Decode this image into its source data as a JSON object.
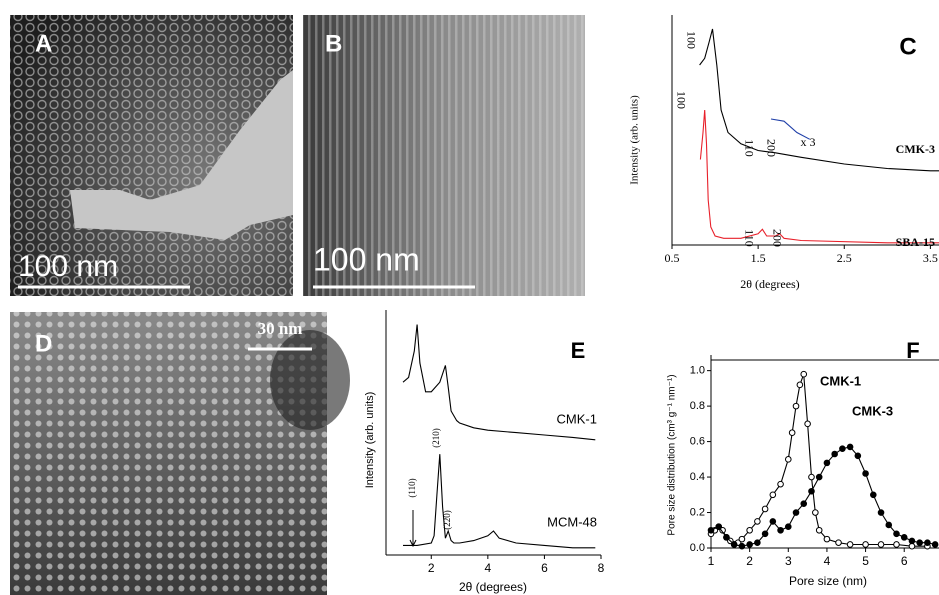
{
  "images": [
    {
      "panel": "A",
      "scale_bar": "100 nm"
    },
    {
      "panel": "B",
      "scale_bar": "100 nm"
    },
    {
      "panel": "D",
      "scale_bar": "30 nm"
    }
  ],
  "chart_data": [
    {
      "type": "line",
      "panel": "C",
      "xlabel": "2θ (degrees)",
      "ylabel": "Intensity (arb. units)",
      "xlim": [
        0.5,
        3.6
      ],
      "xticks": [
        0.5,
        1.5,
        2.5,
        3.5
      ],
      "ylim": [
        0,
        1
      ],
      "annotations": [
        "100",
        "110",
        "200",
        "x 3",
        "100",
        "110",
        "200"
      ],
      "series": [
        {
          "name": "CMK-3",
          "color": "#000000",
          "x": [
            0.82,
            0.88,
            0.93,
            0.97,
            1.02,
            1.07,
            1.15,
            1.3,
            1.5,
            1.7,
            2.0,
            2.5,
            3.0,
            3.5,
            3.6
          ],
          "values": [
            0.8,
            0.83,
            0.9,
            0.96,
            0.8,
            0.6,
            0.5,
            0.45,
            0.42,
            0.41,
            0.39,
            0.36,
            0.34,
            0.33,
            0.33
          ]
        },
        {
          "name": null,
          "color": "#1f3fa8",
          "x": [
            1.65,
            1.8,
            1.95,
            2.1
          ],
          "values": [
            0.56,
            0.55,
            0.5,
            0.47
          ]
        },
        {
          "name": "SBA-15",
          "color": "#e8202a",
          "x": [
            0.83,
            0.86,
            0.88,
            0.9,
            0.92,
            0.95,
            1.0,
            1.1,
            1.3,
            1.5,
            1.55,
            1.6,
            1.7,
            1.75,
            1.8,
            2.0,
            3.0,
            3.6
          ],
          "values": [
            0.38,
            0.5,
            0.6,
            0.45,
            0.2,
            0.08,
            0.04,
            0.03,
            0.03,
            0.05,
            0.07,
            0.04,
            0.04,
            0.05,
            0.03,
            0.02,
            0.01,
            0.01
          ]
        }
      ]
    },
    {
      "type": "line",
      "panel": "E",
      "xlabel": "2θ (degrees)",
      "ylabel": "Intensity (arb. units)",
      "xlim": [
        0.4,
        8
      ],
      "xticks": [
        2,
        4,
        6,
        8
      ],
      "ylim": [
        0,
        1
      ],
      "annotations": [
        "(110)",
        "(210)",
        "(220)"
      ],
      "series": [
        {
          "name": "CMK-1",
          "color": "#000000",
          "x": [
            1.0,
            1.2,
            1.4,
            1.5,
            1.6,
            1.8,
            2.0,
            2.3,
            2.5,
            2.6,
            2.7,
            2.9,
            3.0,
            3.5,
            4,
            5,
            6,
            7,
            7.8
          ],
          "values": [
            0.72,
            0.74,
            0.85,
            0.96,
            0.8,
            0.68,
            0.68,
            0.72,
            0.79,
            0.7,
            0.6,
            0.56,
            0.55,
            0.53,
            0.52,
            0.51,
            0.5,
            0.49,
            0.48
          ]
        },
        {
          "name": "MCM-48",
          "color": "#000000",
          "x": [
            1.0,
            1.5,
            2.0,
            2.1,
            2.2,
            2.3,
            2.4,
            2.5,
            2.6,
            2.7,
            2.8,
            3.0,
            3.5,
            4.0,
            4.2,
            4.4,
            5,
            6,
            7,
            7.8
          ],
          "values": [
            0.04,
            0.04,
            0.05,
            0.08,
            0.25,
            0.42,
            0.2,
            0.07,
            0.1,
            0.06,
            0.05,
            0.05,
            0.06,
            0.08,
            0.1,
            0.07,
            0.05,
            0.04,
            0.03,
            0.03
          ]
        }
      ]
    },
    {
      "type": "line",
      "panel": "F",
      "xlabel": "Pore size (nm)",
      "ylabel": "Pore size distribution (cm³ g⁻¹ nm⁻¹)",
      "xlim": [
        1,
        6.9
      ],
      "xticks": [
        1,
        2,
        3,
        4,
        5,
        6
      ],
      "ylim": [
        0,
        1.06
      ],
      "yticks": [
        {
          "value": 0,
          "label": "0.0"
        },
        0.2,
        0.4,
        0.6,
        0.8,
        {
          "value": 1,
          "label": "1.0"
        }
      ],
      "series": [
        {
          "name": "CMK-1",
          "color": "#000000",
          "marker": "open",
          "x": [
            1.0,
            1.1,
            1.2,
            1.3,
            1.4,
            1.5,
            1.6,
            1.7,
            1.8,
            2.0,
            2.2,
            2.4,
            2.6,
            2.8,
            3.0,
            3.1,
            3.2,
            3.3,
            3.4,
            3.5,
            3.6,
            3.7,
            3.8,
            4.0,
            4.3,
            4.6,
            5.0,
            5.4,
            5.8,
            6.2,
            6.6
          ],
          "values": [
            0.08,
            0.1,
            0.12,
            0.1,
            0.06,
            0.04,
            0.02,
            0.03,
            0.05,
            0.1,
            0.15,
            0.22,
            0.3,
            0.36,
            0.5,
            0.65,
            0.8,
            0.92,
            0.98,
            0.7,
            0.4,
            0.2,
            0.1,
            0.05,
            0.03,
            0.02,
            0.02,
            0.02,
            0.02,
            0.01,
            0.01
          ]
        },
        {
          "name": "CMK-3",
          "color": "#000000",
          "marker": "filled",
          "x": [
            1.0,
            1.2,
            1.4,
            1.6,
            1.8,
            2.0,
            2.2,
            2.4,
            2.6,
            2.8,
            3.0,
            3.2,
            3.4,
            3.6,
            3.8,
            4.0,
            4.2,
            4.4,
            4.6,
            4.8,
            5.0,
            5.2,
            5.4,
            5.6,
            5.8,
            6.0,
            6.2,
            6.4,
            6.6,
            6.8
          ],
          "values": [
            0.1,
            0.12,
            0.06,
            0.02,
            0.01,
            0.02,
            0.03,
            0.08,
            0.15,
            0.1,
            0.12,
            0.2,
            0.25,
            0.32,
            0.4,
            0.48,
            0.53,
            0.56,
            0.57,
            0.52,
            0.42,
            0.3,
            0.2,
            0.13,
            0.08,
            0.06,
            0.04,
            0.03,
            0.03,
            0.02
          ]
        }
      ]
    }
  ]
}
